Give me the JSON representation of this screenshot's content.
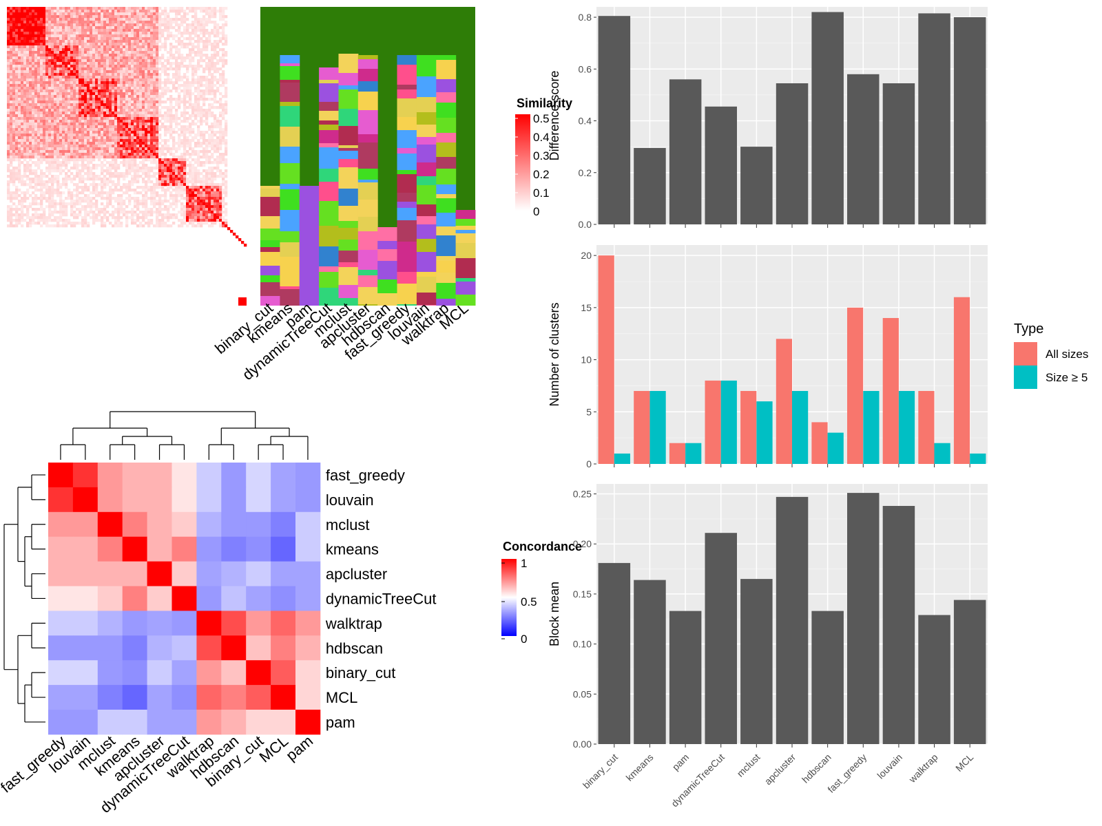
{
  "chart_data": [
    {
      "type": "heatmap",
      "title": "",
      "legend": {
        "title": "Similarity",
        "ticks": [
          "0.5",
          "0.4",
          "0.3",
          "0.2",
          "0.1",
          "0"
        ],
        "range": [
          0,
          0.5
        ],
        "colors": [
          "#ffffff",
          "#ff0000"
        ]
      }
    },
    {
      "type": "heatmap",
      "title": "",
      "columns": [
        "binary_cut",
        "kmeans",
        "pam",
        "dynamicTreeCut",
        "mclust",
        "apcluster",
        "hdbscan",
        "fast_greedy",
        "louvain",
        "walktrap",
        "MCL"
      ]
    },
    {
      "type": "heatmap",
      "title": "",
      "rows": [
        "fast_greedy",
        "louvain",
        "mclust",
        "kmeans",
        "apcluster",
        "dynamicTreeCut",
        "walktrap",
        "hdbscan",
        "binary_cut",
        "MCL",
        "pam"
      ],
      "columns": [
        "fast_greedy",
        "louvain",
        "mclust",
        "kmeans",
        "apcluster",
        "dynamicTreeCut",
        "walktrap",
        "hdbscan",
        "binary_cut",
        "MCL",
        "pam"
      ],
      "values": [
        [
          1.0,
          0.9,
          0.7,
          0.65,
          0.65,
          0.55,
          0.4,
          0.3,
          0.42,
          0.32,
          0.3
        ],
        [
          0.9,
          1.0,
          0.7,
          0.65,
          0.65,
          0.55,
          0.4,
          0.3,
          0.42,
          0.32,
          0.3
        ],
        [
          0.7,
          0.7,
          1.0,
          0.75,
          0.65,
          0.6,
          0.35,
          0.3,
          0.3,
          0.25,
          0.4
        ],
        [
          0.65,
          0.65,
          0.75,
          1.0,
          0.65,
          0.75,
          0.3,
          0.25,
          0.28,
          0.2,
          0.4
        ],
        [
          0.65,
          0.65,
          0.65,
          0.65,
          1.0,
          0.6,
          0.32,
          0.35,
          0.4,
          0.32,
          0.32
        ],
        [
          0.55,
          0.55,
          0.6,
          0.75,
          0.6,
          1.0,
          0.3,
          0.38,
          0.32,
          0.28,
          0.32
        ],
        [
          0.4,
          0.4,
          0.35,
          0.3,
          0.32,
          0.3,
          1.0,
          0.85,
          0.7,
          0.8,
          0.7
        ],
        [
          0.3,
          0.3,
          0.3,
          0.25,
          0.35,
          0.38,
          0.85,
          1.0,
          0.62,
          0.75,
          0.65
        ],
        [
          0.42,
          0.42,
          0.3,
          0.28,
          0.4,
          0.32,
          0.7,
          0.62,
          1.0,
          0.82,
          0.58
        ],
        [
          0.32,
          0.32,
          0.25,
          0.2,
          0.32,
          0.28,
          0.8,
          0.75,
          0.82,
          1.0,
          0.58
        ],
        [
          0.3,
          0.3,
          0.4,
          0.4,
          0.32,
          0.32,
          0.7,
          0.65,
          0.58,
          0.58,
          1.0
        ]
      ],
      "legend": {
        "title": "Concordance",
        "ticks": [
          "1",
          "0.5",
          "0"
        ],
        "range": [
          0,
          1
        ],
        "colors": [
          "#0000ff",
          "#ffffff",
          "#ff0000"
        ]
      }
    },
    {
      "type": "bar",
      "title": "",
      "categories": [
        "binary_cut",
        "kmeans",
        "pam",
        "dynamicTreeCut",
        "mclust",
        "apcluster",
        "hdbscan",
        "fast_greedy",
        "louvain",
        "walktrap",
        "MCL"
      ],
      "values": [
        0.805,
        0.295,
        0.56,
        0.455,
        0.3,
        0.545,
        0.82,
        0.58,
        0.545,
        0.815,
        0.8
      ],
      "xlabel": "",
      "ylabel": "Difference score",
      "ylim": [
        0,
        0.84
      ],
      "yticks": [
        "0.0",
        "0.2",
        "0.4",
        "0.6",
        "0.8"
      ],
      "grid": true
    },
    {
      "type": "bar",
      "title": "",
      "categories": [
        "binary_cut",
        "kmeans",
        "pam",
        "dynamicTreeCut",
        "mclust",
        "apcluster",
        "hdbscan",
        "fast_greedy",
        "louvain",
        "walktrap",
        "MCL"
      ],
      "series": [
        {
          "name": "All sizes",
          "color": "#F8766D",
          "values": [
            20,
            7,
            2,
            8,
            7,
            12,
            4,
            15,
            14,
            7,
            16
          ]
        },
        {
          "name": "Size ≥ 5",
          "color": "#00BFC4",
          "values": [
            1,
            7,
            2,
            8,
            6,
            7,
            3,
            7,
            7,
            2,
            1
          ]
        }
      ],
      "xlabel": "",
      "ylabel": "Number of clusters",
      "ylim": [
        0,
        21
      ],
      "yticks": [
        "0",
        "5",
        "10",
        "15",
        "20"
      ],
      "legend_title": "Type",
      "legend_position": "right",
      "grid": true
    },
    {
      "type": "bar",
      "title": "",
      "categories": [
        "binary_cut",
        "kmeans",
        "pam",
        "dynamicTreeCut",
        "mclust",
        "apcluster",
        "hdbscan",
        "fast_greedy",
        "louvain",
        "walktrap",
        "MCL"
      ],
      "values": [
        0.181,
        0.164,
        0.133,
        0.211,
        0.165,
        0.247,
        0.133,
        0.251,
        0.238,
        0.129,
        0.144
      ],
      "xlabel": "",
      "ylabel": "Block mean",
      "ylim": [
        0,
        0.26
      ],
      "yticks": [
        "0.00",
        "0.05",
        "0.10",
        "0.15",
        "0.20",
        "0.25"
      ],
      "grid": true
    }
  ]
}
